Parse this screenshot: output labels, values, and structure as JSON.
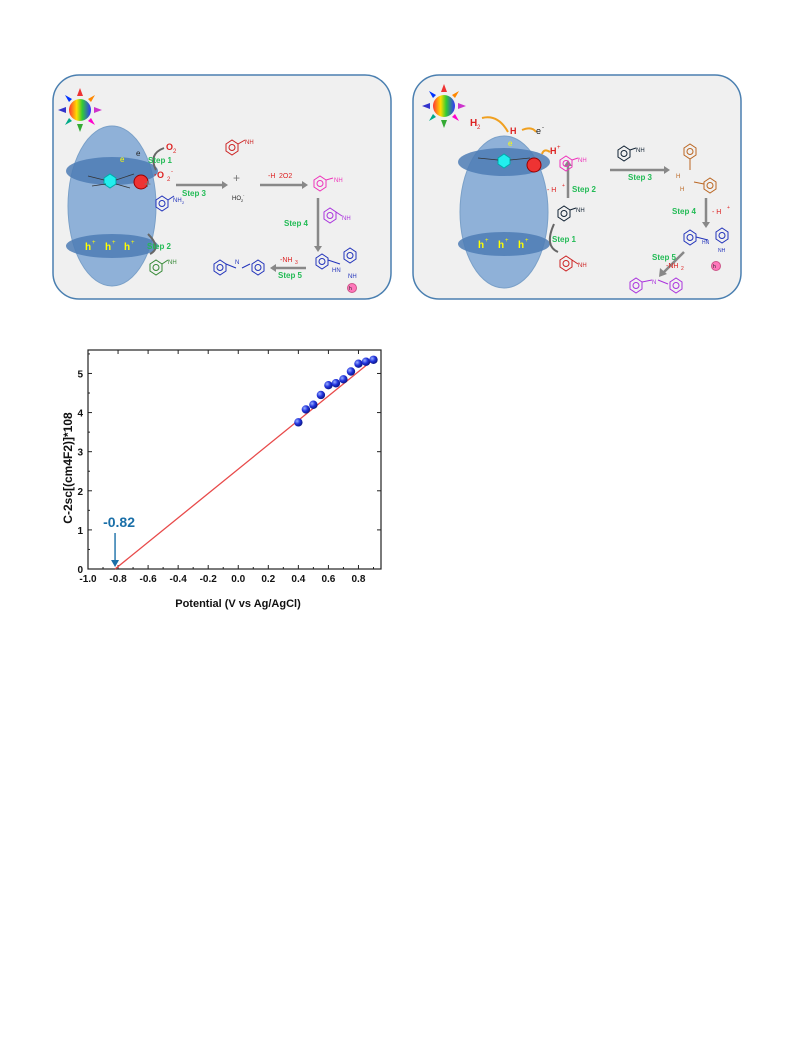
{
  "scheme_left": {
    "o2": "O",
    "o2_sub": "2",
    "superoxide": "·O",
    "superoxide_sub": "2",
    "superoxide_sup": "-",
    "electron": "e",
    "electron_sup": "-",
    "step1": "Step 1",
    "step2": "Step 2",
    "step3": "Step 3",
    "step4": "Step 4",
    "step5": "Step 5",
    "plus": "+",
    "h2o2_loss": "-H",
    "h2o2_loss_rest": "2O2",
    "ho2": "HO",
    "ho2_sub": "2",
    "ho2_sup": "-",
    "nh3_loss": "-NH",
    "nh3_sub": "3",
    "nh2": "NH",
    "nh2_sub": "2",
    "nh": "NH",
    "hn": "HN",
    "hole": "h",
    "hole_sup": "+"
  },
  "scheme_right": {
    "h2": "H",
    "h2_sub": "2",
    "h_atom": "H",
    "electron": "e",
    "electron_sup": "-",
    "proton": "H",
    "proton_sup": "+",
    "minus_proton": "- H",
    "step1": "Step 1",
    "step2": "Step 2",
    "step3": "Step 3",
    "step4": "Step 4",
    "step5": "Step 5",
    "nh2": "NH",
    "nh2_sub": "2",
    "h2n": "H",
    "nh3_loss": "-NH",
    "nh3_sub": "2",
    "hn": "HN",
    "hole": "h",
    "hole_sup": "+"
  },
  "chart_data": {
    "type": "scatter",
    "title": "",
    "xlabel": "Potential (V vs Ag/AgCl)",
    "ylabel": "C-2sc[(cm4F2)]*108",
    "xlim": [
      -1.0,
      0.95
    ],
    "ylim": [
      0,
      5.6
    ],
    "x_ticks": [
      "-1.0",
      "-0.8",
      "-0.6",
      "-0.4",
      "-0.2",
      "0.0",
      "0.2",
      "0.4",
      "0.6",
      "0.8"
    ],
    "x_tick_values": [
      -1.0,
      -0.8,
      -0.6,
      -0.4,
      -0.2,
      0.0,
      0.2,
      0.4,
      0.6,
      0.8
    ],
    "y_ticks": [
      "0",
      "1",
      "2",
      "3",
      "4",
      "5"
    ],
    "y_tick_values": [
      0,
      1,
      2,
      3,
      4,
      5
    ],
    "points": [
      {
        "x": 0.4,
        "y": 3.75
      },
      {
        "x": 0.45,
        "y": 4.08
      },
      {
        "x": 0.5,
        "y": 4.2
      },
      {
        "x": 0.55,
        "y": 4.45
      },
      {
        "x": 0.6,
        "y": 4.7
      },
      {
        "x": 0.65,
        "y": 4.75
      },
      {
        "x": 0.7,
        "y": 4.85
      },
      {
        "x": 0.75,
        "y": 5.05
      },
      {
        "x": 0.8,
        "y": 5.25
      },
      {
        "x": 0.85,
        "y": 5.3
      },
      {
        "x": 0.9,
        "y": 5.35
      }
    ],
    "fit_line": {
      "x": [
        -0.82,
        0.92
      ],
      "y": [
        0,
        5.42
      ]
    },
    "annotation": {
      "text": "-0.82",
      "x": -0.82,
      "y": 0
    },
    "colors": {
      "points": "#2233dd",
      "line": "#e84a4a",
      "annotation": "#1a6fa8"
    },
    "grid": false
  }
}
